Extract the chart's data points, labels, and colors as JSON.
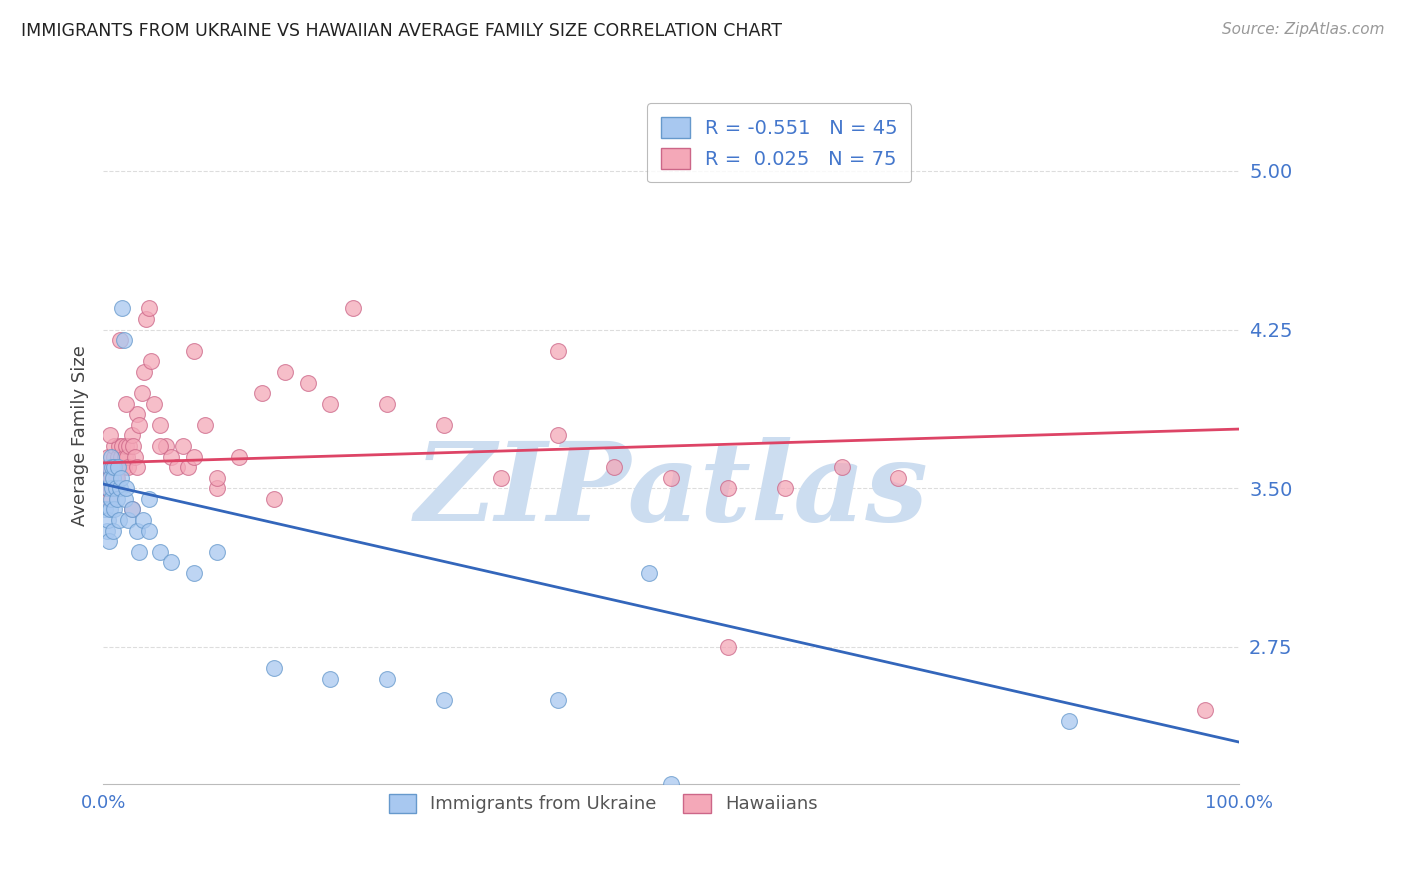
{
  "title": "IMMIGRANTS FROM UKRAINE VS HAWAIIAN AVERAGE FAMILY SIZE CORRELATION CHART",
  "source": "Source: ZipAtlas.com",
  "ylabel": "Average Family Size",
  "yticks": [
    2.75,
    3.5,
    4.25,
    5.0
  ],
  "xlim": [
    0.0,
    1.0
  ],
  "ylim": [
    2.1,
    5.4
  ],
  "blue_color": "#a8c8f0",
  "pink_color": "#f4a8b8",
  "blue_edge": "#6699cc",
  "pink_edge": "#cc6688",
  "trend_blue": "#3366bb",
  "trend_pink": "#dd4466",
  "legend_blue_r": "-0.551",
  "legend_blue_n": "45",
  "legend_pink_r": "0.025",
  "legend_pink_n": "75",
  "grid_color": "#dddddd",
  "title_color": "#222222",
  "axis_label_color": "#444444",
  "tick_color": "#4477cc",
  "watermark_color": "#ccddf0",
  "blue_x": [
    0.002,
    0.003,
    0.004,
    0.004,
    0.005,
    0.005,
    0.006,
    0.006,
    0.007,
    0.007,
    0.008,
    0.008,
    0.009,
    0.009,
    0.01,
    0.01,
    0.011,
    0.012,
    0.013,
    0.014,
    0.015,
    0.016,
    0.017,
    0.018,
    0.019,
    0.02,
    0.022,
    0.025,
    0.03,
    0.032,
    0.035,
    0.04,
    0.04,
    0.05,
    0.06,
    0.08,
    0.1,
    0.15,
    0.2,
    0.25,
    0.3,
    0.4,
    0.5,
    0.85,
    0.48
  ],
  "blue_y": [
    3.4,
    3.3,
    3.35,
    3.5,
    3.25,
    3.6,
    3.4,
    3.55,
    3.45,
    3.65,
    3.5,
    3.6,
    3.3,
    3.55,
    3.6,
    3.4,
    3.5,
    3.45,
    3.6,
    3.35,
    3.5,
    3.55,
    4.35,
    4.2,
    3.45,
    3.5,
    3.35,
    3.4,
    3.3,
    3.2,
    3.35,
    3.45,
    3.3,
    3.2,
    3.15,
    3.1,
    3.2,
    2.65,
    2.6,
    2.6,
    2.5,
    2.5,
    2.1,
    2.4,
    3.1
  ],
  "pink_x": [
    0.002,
    0.003,
    0.004,
    0.005,
    0.005,
    0.006,
    0.007,
    0.008,
    0.009,
    0.01,
    0.01,
    0.011,
    0.012,
    0.013,
    0.014,
    0.015,
    0.016,
    0.017,
    0.018,
    0.019,
    0.02,
    0.021,
    0.022,
    0.023,
    0.025,
    0.026,
    0.028,
    0.03,
    0.032,
    0.034,
    0.036,
    0.038,
    0.04,
    0.042,
    0.045,
    0.05,
    0.055,
    0.06,
    0.065,
    0.07,
    0.075,
    0.08,
    0.09,
    0.1,
    0.12,
    0.14,
    0.16,
    0.18,
    0.2,
    0.22,
    0.25,
    0.3,
    0.35,
    0.4,
    0.45,
    0.5,
    0.55,
    0.6,
    0.65,
    0.7,
    0.003,
    0.006,
    0.009,
    0.012,
    0.015,
    0.02,
    0.025,
    0.03,
    0.05,
    0.08,
    0.1,
    0.15,
    0.55,
    0.97,
    0.4
  ],
  "pink_y": [
    3.5,
    3.6,
    3.65,
    3.45,
    3.55,
    3.6,
    3.5,
    3.55,
    3.6,
    3.65,
    3.7,
    3.55,
    3.6,
    3.65,
    3.7,
    3.6,
    3.65,
    3.7,
    3.6,
    3.65,
    3.7,
    3.65,
    3.6,
    3.7,
    3.75,
    3.7,
    3.65,
    3.85,
    3.8,
    3.95,
    4.05,
    4.3,
    4.35,
    4.1,
    3.9,
    3.8,
    3.7,
    3.65,
    3.6,
    3.7,
    3.6,
    3.65,
    3.8,
    3.5,
    3.65,
    3.95,
    4.05,
    4.0,
    3.9,
    4.35,
    3.9,
    3.8,
    3.55,
    3.75,
    3.6,
    3.55,
    3.5,
    3.5,
    3.6,
    3.55,
    3.5,
    3.75,
    3.6,
    3.55,
    4.2,
    3.9,
    3.4,
    3.6,
    3.7,
    4.15,
    3.55,
    3.45,
    2.75,
    2.45,
    4.15
  ],
  "blue_trend_x": [
    0.0,
    1.0
  ],
  "blue_trend_y": [
    3.52,
    2.3
  ],
  "pink_trend_x": [
    0.0,
    1.0
  ],
  "pink_trend_y": [
    3.62,
    3.78
  ]
}
